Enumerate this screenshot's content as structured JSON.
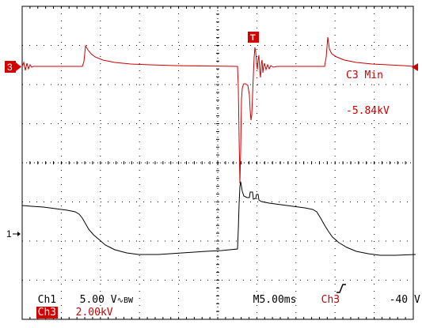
{
  "screen": {
    "colors": {
      "background": "#ffffff",
      "grid": "#000000",
      "ch1": "#000000",
      "ch3": "#cc0000",
      "marker_bg": "#d40000"
    }
  },
  "markers": {
    "ch3_label": "3",
    "ch1_label": "1",
    "trigger_label": "T"
  },
  "measurement": {
    "label": "C3 Min",
    "value": "-5.84kV"
  },
  "readouts": {
    "ch1_name": "Ch1",
    "ch1_scale": "5.00 V",
    "ch1_coupling": "∿BW",
    "ch3_name": "Ch3",
    "ch3_scale": "2.00kV",
    "timebase": "M5.00ms",
    "trigger_source": "Ch3",
    "trigger_slope_icon": "rising-edge-icon",
    "trigger_level": "-40 V"
  }
}
